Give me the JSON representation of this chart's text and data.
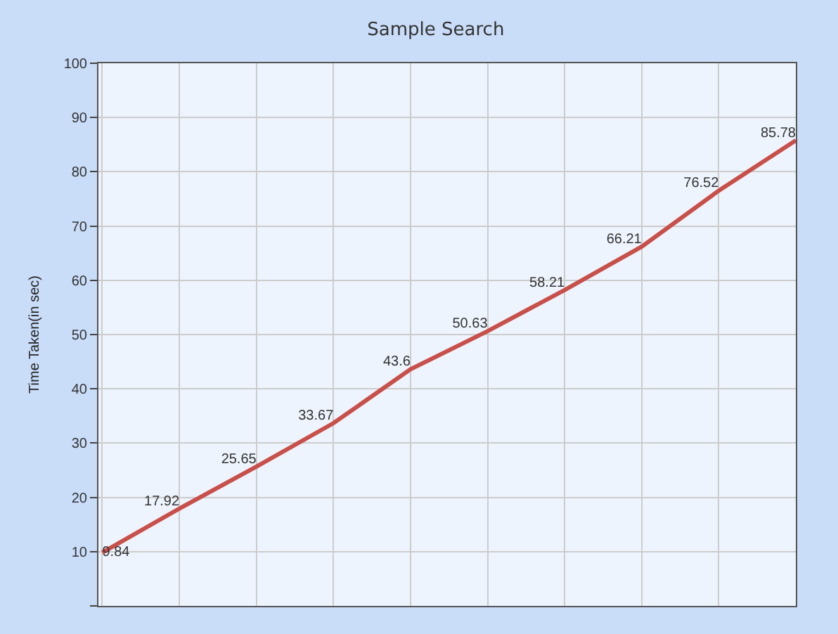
{
  "chart_data": {
    "type": "line",
    "title": "Sample Search",
    "ylabel": "Time Taken(in sec)",
    "categories": [
      null,
      null,
      null,
      null,
      null,
      null,
      null,
      null,
      null,
      null
    ],
    "series": [
      {
        "color": "#c8504a",
        "values": [
          9.84,
          17.92,
          25.65,
          33.67,
          43.6,
          50.63,
          58.21,
          66.21,
          76.52,
          85.78
        ]
      }
    ],
    "ylim": [
      0,
      100
    ],
    "yticks": [
      {
        "value": 0,
        "label": null
      },
      10,
      20,
      30,
      40,
      50,
      60,
      70,
      80,
      90,
      100
    ],
    "data_labels": true,
    "grid": true,
    "marker": "none",
    "line_style": "solid"
  }
}
